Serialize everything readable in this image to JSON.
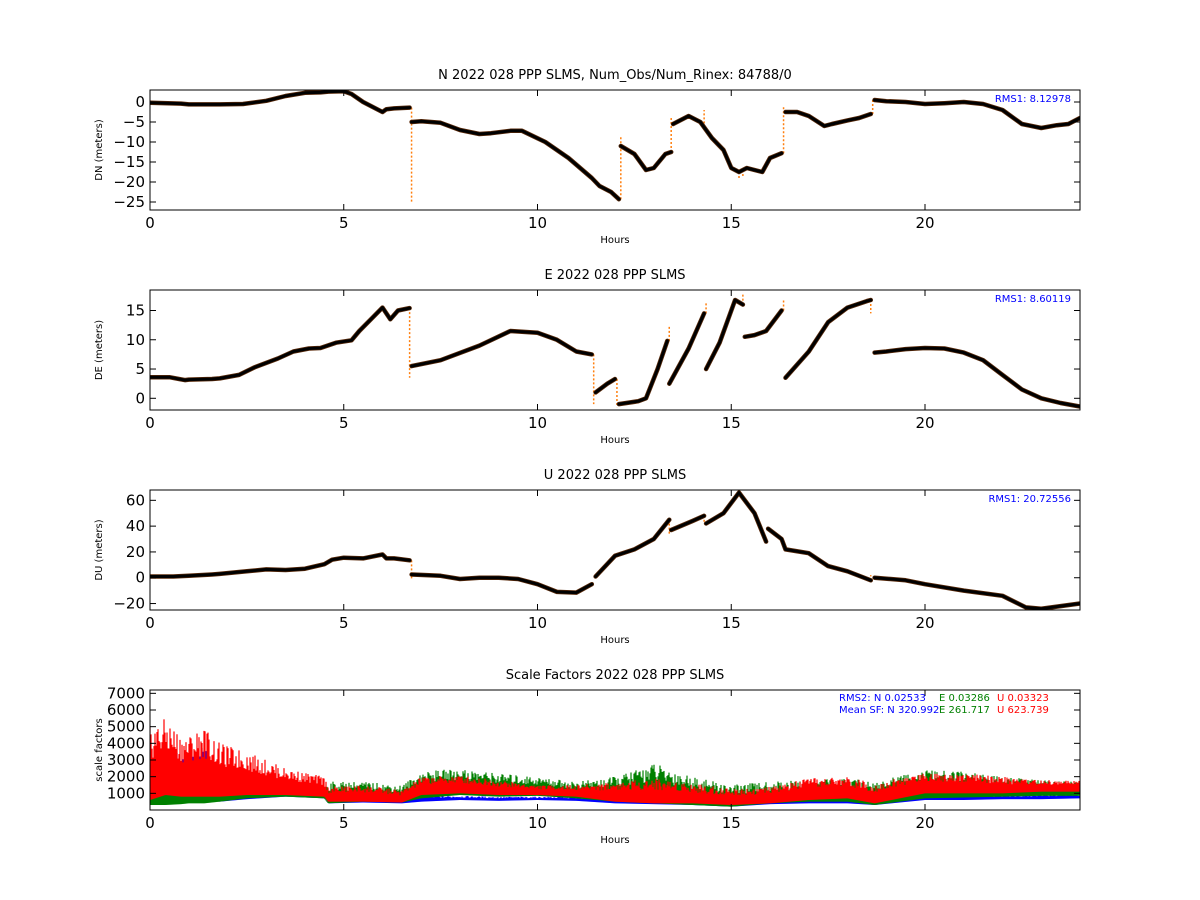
{
  "chart_data": [
    {
      "type": "scatter",
      "title": "N 2022 028 PPP  SLMS, Num_Obs/Num_Rinex: 84788/0",
      "xlabel": "Hours",
      "ylabel": "DN (meters)",
      "xlim": [
        0,
        24
      ],
      "ylim": [
        -27,
        3
      ],
      "xticks": [
        0,
        5,
        10,
        15,
        20
      ],
      "yticks": [
        0,
        -5,
        -10,
        -15,
        -20,
        -25
      ],
      "annotation": "RMS1:  8.12978",
      "annotation_color": "#0000ff",
      "series": [
        {
          "color": "#000000",
          "x": [
            0,
            0.8,
            1.0,
            1.6,
            1.8,
            2.4,
            3.0,
            3.5,
            4.0,
            4.4,
            4.6,
            5.0,
            5.2,
            5.5,
            6.0,
            6.1,
            6.3,
            6.7
          ],
          "y": [
            -0.2,
            -0.4,
            -0.6,
            -0.6,
            -0.6,
            -0.5,
            0.3,
            1.5,
            2.3,
            2.4,
            2.6,
            2.7,
            2.0,
            0.0,
            -2.5,
            -1.8,
            -1.6,
            -1.4
          ]
        },
        {
          "color": "#000000",
          "x": [
            6.75,
            7.0,
            7.5,
            8.0,
            8.5,
            8.8,
            9.3,
            9.6,
            10.2,
            10.8,
            11.4,
            11.6,
            11.9,
            12.1
          ],
          "y": [
            -5.0,
            -4.8,
            -5.2,
            -7.0,
            -8.0,
            -7.8,
            -7.2,
            -7.2,
            -10.0,
            -14.0,
            -19.0,
            -21.0,
            -22.5,
            -24.3
          ]
        },
        {
          "color": "#000000",
          "x": [
            12.15,
            12.5,
            12.8,
            13.0,
            13.3,
            13.45
          ],
          "y": [
            -11.0,
            -13.0,
            -17.0,
            -16.5,
            -13.0,
            -12.5
          ]
        },
        {
          "color": "#000000",
          "x": [
            13.5,
            13.9,
            14.2,
            14.5,
            14.8,
            15.0,
            15.2,
            15.4,
            15.6,
            15.8,
            16.0,
            16.3
          ],
          "y": [
            -5.5,
            -3.5,
            -5.0,
            -9.0,
            -12.0,
            -16.5,
            -17.5,
            -16.5,
            -17.0,
            -17.5,
            -14.0,
            -12.8
          ]
        },
        {
          "color": "#000000",
          "x": [
            16.4,
            16.7,
            17.0,
            17.4,
            17.6,
            18.0,
            18.3,
            18.6
          ],
          "y": [
            -2.5,
            -2.5,
            -3.5,
            -6.0,
            -5.5,
            -4.6,
            -4.0,
            -3.0
          ]
        },
        {
          "color": "#000000",
          "x": [
            18.7,
            19.0,
            19.5,
            20.0,
            20.5,
            21.0,
            21.5,
            22.0,
            22.5,
            23.0,
            23.4,
            23.7,
            24.0
          ],
          "y": [
            0.5,
            0.2,
            0.0,
            -0.5,
            -0.3,
            0.0,
            -0.5,
            -2.0,
            -5.5,
            -6.5,
            -5.8,
            -5.5,
            -4.0
          ]
        }
      ],
      "spikes": {
        "color": "#ff7f0e",
        "x": [
          6.75,
          12.05,
          12.15,
          13.45,
          14.3,
          15.2,
          15.3,
          16.35,
          18.65
        ],
        "y": [
          -25.0,
          -24.0,
          -8.5,
          -3.5,
          -2.0,
          -19.0,
          -19.0,
          -1.0,
          0.5
        ]
      }
    },
    {
      "type": "scatter",
      "title": "E 2022 028 PPP  SLMS",
      "xlabel": "Hours",
      "ylabel": "DE (meters)",
      "xlim": [
        0,
        24
      ],
      "ylim": [
        -2,
        18.5
      ],
      "xticks": [
        0,
        5,
        10,
        15,
        20
      ],
      "yticks": [
        0,
        5,
        10,
        15
      ],
      "annotation": "RMS1:  8.60119",
      "annotation_color": "#0000ff",
      "series": [
        {
          "color": "#000000",
          "x": [
            0,
            0.5,
            0.9,
            1.0,
            1.6,
            1.8,
            2.3,
            2.7,
            3.3,
            3.7,
            4.1,
            4.4,
            4.8,
            5.2,
            5.4,
            5.7,
            6.0,
            6.2,
            6.4,
            6.7
          ],
          "y": [
            3.6,
            3.6,
            3.1,
            3.2,
            3.3,
            3.4,
            4.0,
            5.3,
            6.8,
            8.0,
            8.5,
            8.6,
            9.5,
            9.9,
            11.5,
            13.5,
            15.5,
            13.5,
            15.0,
            15.4
          ]
        },
        {
          "color": "#000000",
          "x": [
            6.75,
            7.5,
            8.5,
            9.3,
            10.0,
            10.5,
            11.0,
            11.4
          ],
          "y": [
            5.5,
            6.5,
            9.0,
            11.5,
            11.2,
            10.0,
            8.0,
            7.5
          ]
        },
        {
          "color": "#000000",
          "x": [
            11.5,
            11.8,
            12.0
          ],
          "y": [
            1.0,
            2.5,
            3.3
          ]
        },
        {
          "color": "#000000",
          "x": [
            12.1,
            12.6,
            12.8,
            13.1,
            13.35
          ],
          "y": [
            -1.0,
            -0.5,
            0.0,
            5.0,
            9.8
          ]
        },
        {
          "color": "#000000",
          "x": [
            13.4,
            13.9,
            14.3
          ],
          "y": [
            2.5,
            8.5,
            14.5
          ]
        },
        {
          "color": "#000000",
          "x": [
            14.35,
            14.7,
            15.1,
            15.3
          ],
          "y": [
            5.0,
            9.5,
            16.8,
            16.0
          ]
        },
        {
          "color": "#000000",
          "x": [
            15.35,
            15.6,
            15.9,
            16.3
          ],
          "y": [
            10.5,
            10.8,
            11.5,
            15.0
          ]
        },
        {
          "color": "#000000",
          "x": [
            16.4,
            17.0,
            17.5,
            18.0,
            18.5,
            18.6
          ],
          "y": [
            3.5,
            8.0,
            13.0,
            15.5,
            16.6,
            16.8
          ]
        },
        {
          "color": "#000000",
          "x": [
            18.7,
            19.0,
            19.5,
            20.0,
            20.5,
            21.0,
            21.5,
            22.0,
            22.5,
            23.0,
            23.5,
            24.0
          ],
          "y": [
            7.8,
            8.0,
            8.4,
            8.6,
            8.5,
            7.8,
            6.5,
            4.0,
            1.5,
            0.0,
            -0.8,
            -1.4
          ]
        }
      ],
      "spikes": {
        "color": "#ff7f0e",
        "x": [
          6.7,
          11.45,
          12.05,
          13.4,
          14.35,
          15.3,
          16.35,
          18.6
        ],
        "y": [
          3.5,
          -1.0,
          -1.5,
          12.5,
          16.5,
          18.0,
          17.0,
          14.5
        ]
      }
    },
    {
      "type": "scatter",
      "title": "U 2022 028 PPP  SLMS",
      "xlabel": "Hours",
      "ylabel": "DU (meters)",
      "xlim": [
        0,
        24
      ],
      "ylim": [
        -25,
        68
      ],
      "xticks": [
        0,
        5,
        10,
        15,
        20
      ],
      "yticks": [
        -20,
        0,
        20,
        40,
        60
      ],
      "annotation": "RMS1: 20.72556",
      "annotation_color": "#0000ff",
      "series": [
        {
          "color": "#000000",
          "x": [
            0,
            0.6,
            1.0,
            1.6,
            1.8,
            2.5,
            3.0,
            3.5,
            4.0,
            4.5,
            4.7,
            5.0,
            5.5,
            6.0,
            6.1,
            6.3,
            6.7
          ],
          "y": [
            1.0,
            1.0,
            1.5,
            2.5,
            3.0,
            5.0,
            6.5,
            6.0,
            7.0,
            10.5,
            14.0,
            15.5,
            15.0,
            18.0,
            15.0,
            15.0,
            13.5
          ]
        },
        {
          "color": "#000000",
          "x": [
            6.75,
            7.5,
            8.0,
            8.5,
            9.0,
            9.5,
            10.0,
            10.5,
            11.0,
            11.4
          ],
          "y": [
            2.5,
            1.5,
            -1.0,
            0.0,
            0.0,
            -1.0,
            -5.0,
            -11.0,
            -11.5,
            -5.0
          ]
        },
        {
          "color": "#000000",
          "x": [
            11.5,
            12.0,
            12.5,
            13.0,
            13.4
          ],
          "y": [
            1.0,
            17.0,
            22.0,
            30.0,
            45.0
          ]
        },
        {
          "color": "#000000",
          "x": [
            13.45,
            14.0,
            14.3
          ],
          "y": [
            37.0,
            44.0,
            48.0
          ]
        },
        {
          "color": "#000000",
          "x": [
            14.35,
            14.8,
            15.2,
            15.6,
            15.9
          ],
          "y": [
            42.0,
            50.0,
            66.0,
            50.0,
            28.0
          ]
        },
        {
          "color": "#000000",
          "x": [
            15.95,
            16.3,
            16.4,
            17.0,
            17.5,
            18.0,
            18.6
          ],
          "y": [
            38.0,
            30.0,
            22.0,
            19.0,
            9.0,
            5.0,
            -2.0
          ]
        },
        {
          "color": "#000000",
          "x": [
            18.7,
            19.5,
            20.0,
            21.0,
            22.0,
            22.6,
            23.0,
            23.5,
            24.0
          ],
          "y": [
            0.0,
            -2.0,
            -5.0,
            -10.0,
            -14.0,
            -23.0,
            -24.0,
            -22.0,
            -20.0
          ]
        }
      ],
      "spikes": {
        "color": "#ff7f0e",
        "x": [
          6.75,
          13.4,
          14.3,
          18.6
        ],
        "y": [
          -2.0,
          33.0,
          42.0,
          2.0
        ]
      }
    },
    {
      "type": "scatter",
      "title": "Scale Factors 2022 028 PPP  SLMS",
      "xlabel": "Hours",
      "ylabel": "scale factors",
      "xlim": [
        0,
        24
      ],
      "ylim": [
        0,
        7200
      ],
      "xticks": [
        0,
        5,
        10,
        15,
        20
      ],
      "yticks": [
        1000,
        2000,
        3000,
        4000,
        5000,
        6000,
        7000
      ],
      "annotations": [
        {
          "text": "RMS2: N  0.02533",
          "color": "#0000ff"
        },
        {
          "text": "E  0.03286",
          "color": "#008000"
        },
        {
          "text": "U  0.03323",
          "color": "#ff0000"
        },
        {
          "text": "Mean SF: N 320.992",
          "color": "#0000ff"
        },
        {
          "text": "E 261.717",
          "color": "#008000"
        },
        {
          "text": "U 623.739",
          "color": "#ff0000"
        }
      ],
      "series": [
        {
          "name": "N",
          "color": "#0000ff",
          "x": [
            0,
            0.4,
            0.8,
            1.0,
            1.4,
            1.8,
            2.5,
            3.5,
            4.5,
            4.6,
            5.5,
            6.5,
            7.0,
            8.0,
            9.0,
            10.0,
            11.0,
            12.0,
            13.0,
            14.0,
            15.0,
            16.0,
            17.0,
            18.0,
            18.7,
            20.0,
            21.0,
            22.0,
            23.0,
            24.0
          ],
          "low": [
            400,
            700,
            600,
            600,
            600,
            500,
            650,
            800,
            700,
            400,
            450,
            400,
            500,
            600,
            550,
            600,
            550,
            400,
            350,
            300,
            200,
            350,
            400,
            400,
            300,
            600,
            600,
            650,
            650,
            700
          ],
          "high": [
            2500,
            3500,
            3500,
            3000,
            4000,
            1100,
            900,
            900,
            900,
            700,
            800,
            800,
            850,
            850,
            800,
            800,
            800,
            700,
            700,
            700,
            600,
            700,
            700,
            700,
            600,
            900,
            900,
            900,
            950,
            950
          ]
        },
        {
          "name": "E",
          "color": "#008000",
          "x": [
            0,
            0.4,
            0.8,
            1.0,
            1.4,
            1.8,
            2.5,
            3.5,
            4.5,
            4.6,
            5.5,
            6.5,
            7.0,
            8.0,
            9.0,
            10.0,
            11.0,
            12.0,
            13.0,
            14.0,
            15.0,
            16.0,
            17.0,
            18.0,
            18.7,
            20.0,
            21.0,
            22.0,
            23.0,
            24.0
          ],
          "low": [
            300,
            300,
            350,
            400,
            400,
            500,
            700,
            800,
            700,
            400,
            500,
            450,
            700,
            900,
            800,
            850,
            700,
            500,
            400,
            300,
            200,
            400,
            500,
            500,
            300,
            700,
            750,
            800,
            850,
            850
          ],
          "high": [
            1500,
            1500,
            1500,
            1500,
            1600,
            1400,
            1300,
            1200,
            1300,
            1700,
            1700,
            1500,
            2300,
            2500,
            2200,
            2000,
            1700,
            2000,
            2800,
            2000,
            1500,
            1700,
            1800,
            1900,
            1700,
            2400,
            2300,
            2000,
            1800,
            1700
          ]
        },
        {
          "name": "U",
          "color": "#ff0000",
          "x": [
            0,
            0.4,
            0.8,
            1.0,
            1.4,
            1.8,
            2.5,
            3.5,
            4.5,
            4.6,
            5.5,
            6.5,
            7.0,
            8.0,
            9.0,
            10.0,
            11.0,
            12.0,
            13.0,
            14.0,
            15.0,
            16.0,
            17.0,
            18.0,
            18.7,
            20.0,
            21.0,
            22.0,
            23.0,
            24.0
          ],
          "low": [
            600,
            900,
            800,
            800,
            800,
            800,
            900,
            900,
            800,
            500,
            500,
            450,
            900,
            1000,
            900,
            900,
            800,
            500,
            400,
            400,
            300,
            400,
            600,
            700,
            400,
            1000,
            1000,
            1000,
            1100,
            1100
          ],
          "high": [
            5000,
            5500,
            4500,
            4500,
            5000,
            4000,
            3500,
            2500,
            2000,
            1400,
            1500,
            1200,
            2000,
            2100,
            1800,
            1500,
            1500,
            1700,
            1900,
            1600,
            1300,
            1400,
            1900,
            2000,
            1600,
            2300,
            2200,
            2000,
            1800,
            1800
          ]
        }
      ]
    }
  ]
}
